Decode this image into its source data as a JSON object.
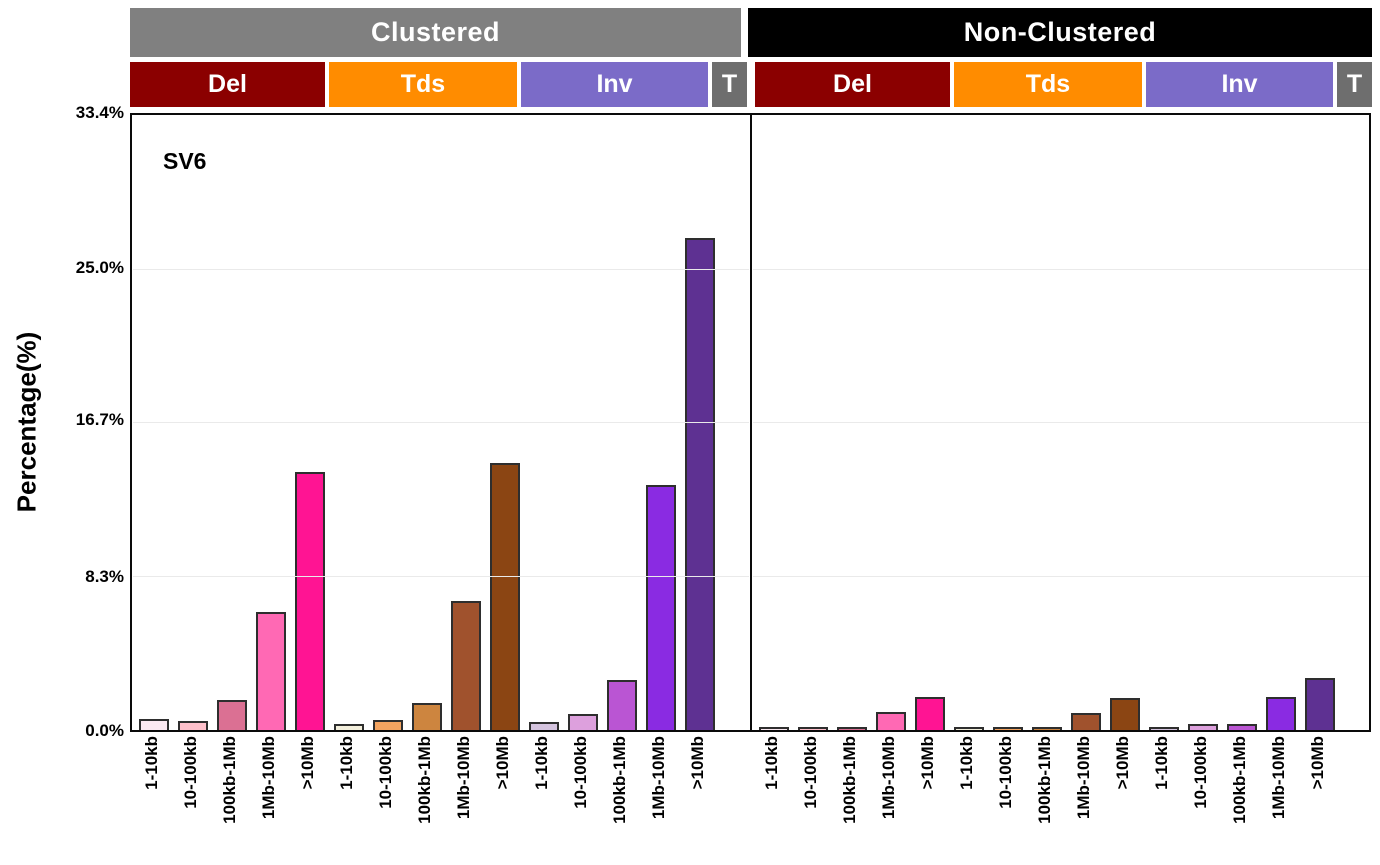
{
  "page": {
    "background": "#ffffff"
  },
  "panel_label": "SV6",
  "y_axis": {
    "title": "Percentage(%)",
    "ticks": [
      "33.4%",
      "25.0%",
      "16.7%",
      "8.3%",
      "0.0%"
    ]
  },
  "headers": {
    "clustered": {
      "label": "Clustered",
      "bg": "#808080",
      "fg": "#ffffff"
    },
    "non_clustered": {
      "label": "Non-Clustered",
      "bg": "#000000",
      "fg": "#ffffff"
    },
    "sv_types": [
      {
        "label": "Del",
        "bg": "#8B0000"
      },
      {
        "label": "Tds",
        "bg": "#FF8C00"
      },
      {
        "label": "Inv",
        "bg": "#7B6BC8"
      },
      {
        "label": "T",
        "bg": "#6E6E6E"
      }
    ]
  },
  "chart_data": {
    "type": "bar",
    "title": "SV6",
    "xlabel": "",
    "ylabel": "Percentage(%)",
    "ylim": [
      0,
      33.4
    ],
    "yticks": [
      0.0,
      8.3,
      16.7,
      25.0,
      33.4
    ],
    "ytick_labels": [
      "0.0%",
      "8.3%",
      "16.7%",
      "25.0%",
      "33.4%"
    ],
    "grid": "horizontal-light",
    "legend_position": "none",
    "categories": [
      "1-10kb",
      "10-100kb",
      "100kb-1Mb",
      "1Mb-10Mb",
      ">10Mb"
    ],
    "bar_colors": {
      "Del": [
        "#FBE9F1",
        "#FFC0CB",
        "#DB7093",
        "#FF69B4",
        "#FF1493"
      ],
      "Tds": [
        "#F3EFDC",
        "#F4A460",
        "#CD853F",
        "#A0522D",
        "#8B4513"
      ],
      "Inv": [
        "#D5C4DF",
        "#DDA0DD",
        "#BA55D3",
        "#8A2BE2",
        "#5E3192"
      ],
      "T": [
        "#6B6B6B"
      ]
    },
    "panels": [
      {
        "name": "Clustered",
        "series": [
          {
            "name": "Del",
            "values": [
              0.6,
              0.5,
              1.65,
              6.4,
              14.0
            ]
          },
          {
            "name": "Tds",
            "values": [
              0.3,
              0.55,
              1.45,
              7.0,
              14.5
            ]
          },
          {
            "name": "Inv",
            "values": [
              0.45,
              0.85,
              2.7,
              13.3,
              26.7
            ]
          },
          {
            "name": "T",
            "values": [
              0
            ]
          }
        ]
      },
      {
        "name": "Non-Clustered",
        "series": [
          {
            "name": "Del",
            "values": [
              0.05,
              0.05,
              0.1,
              1.0,
              1.8
            ]
          },
          {
            "name": "Tds",
            "values": [
              0.03,
              0.05,
              0.12,
              0.95,
              1.75
            ]
          },
          {
            "name": "Inv",
            "values": [
              0.03,
              0.3,
              0.3,
              1.8,
              2.85
            ]
          },
          {
            "name": "T",
            "values": [
              0
            ]
          }
        ]
      }
    ]
  }
}
